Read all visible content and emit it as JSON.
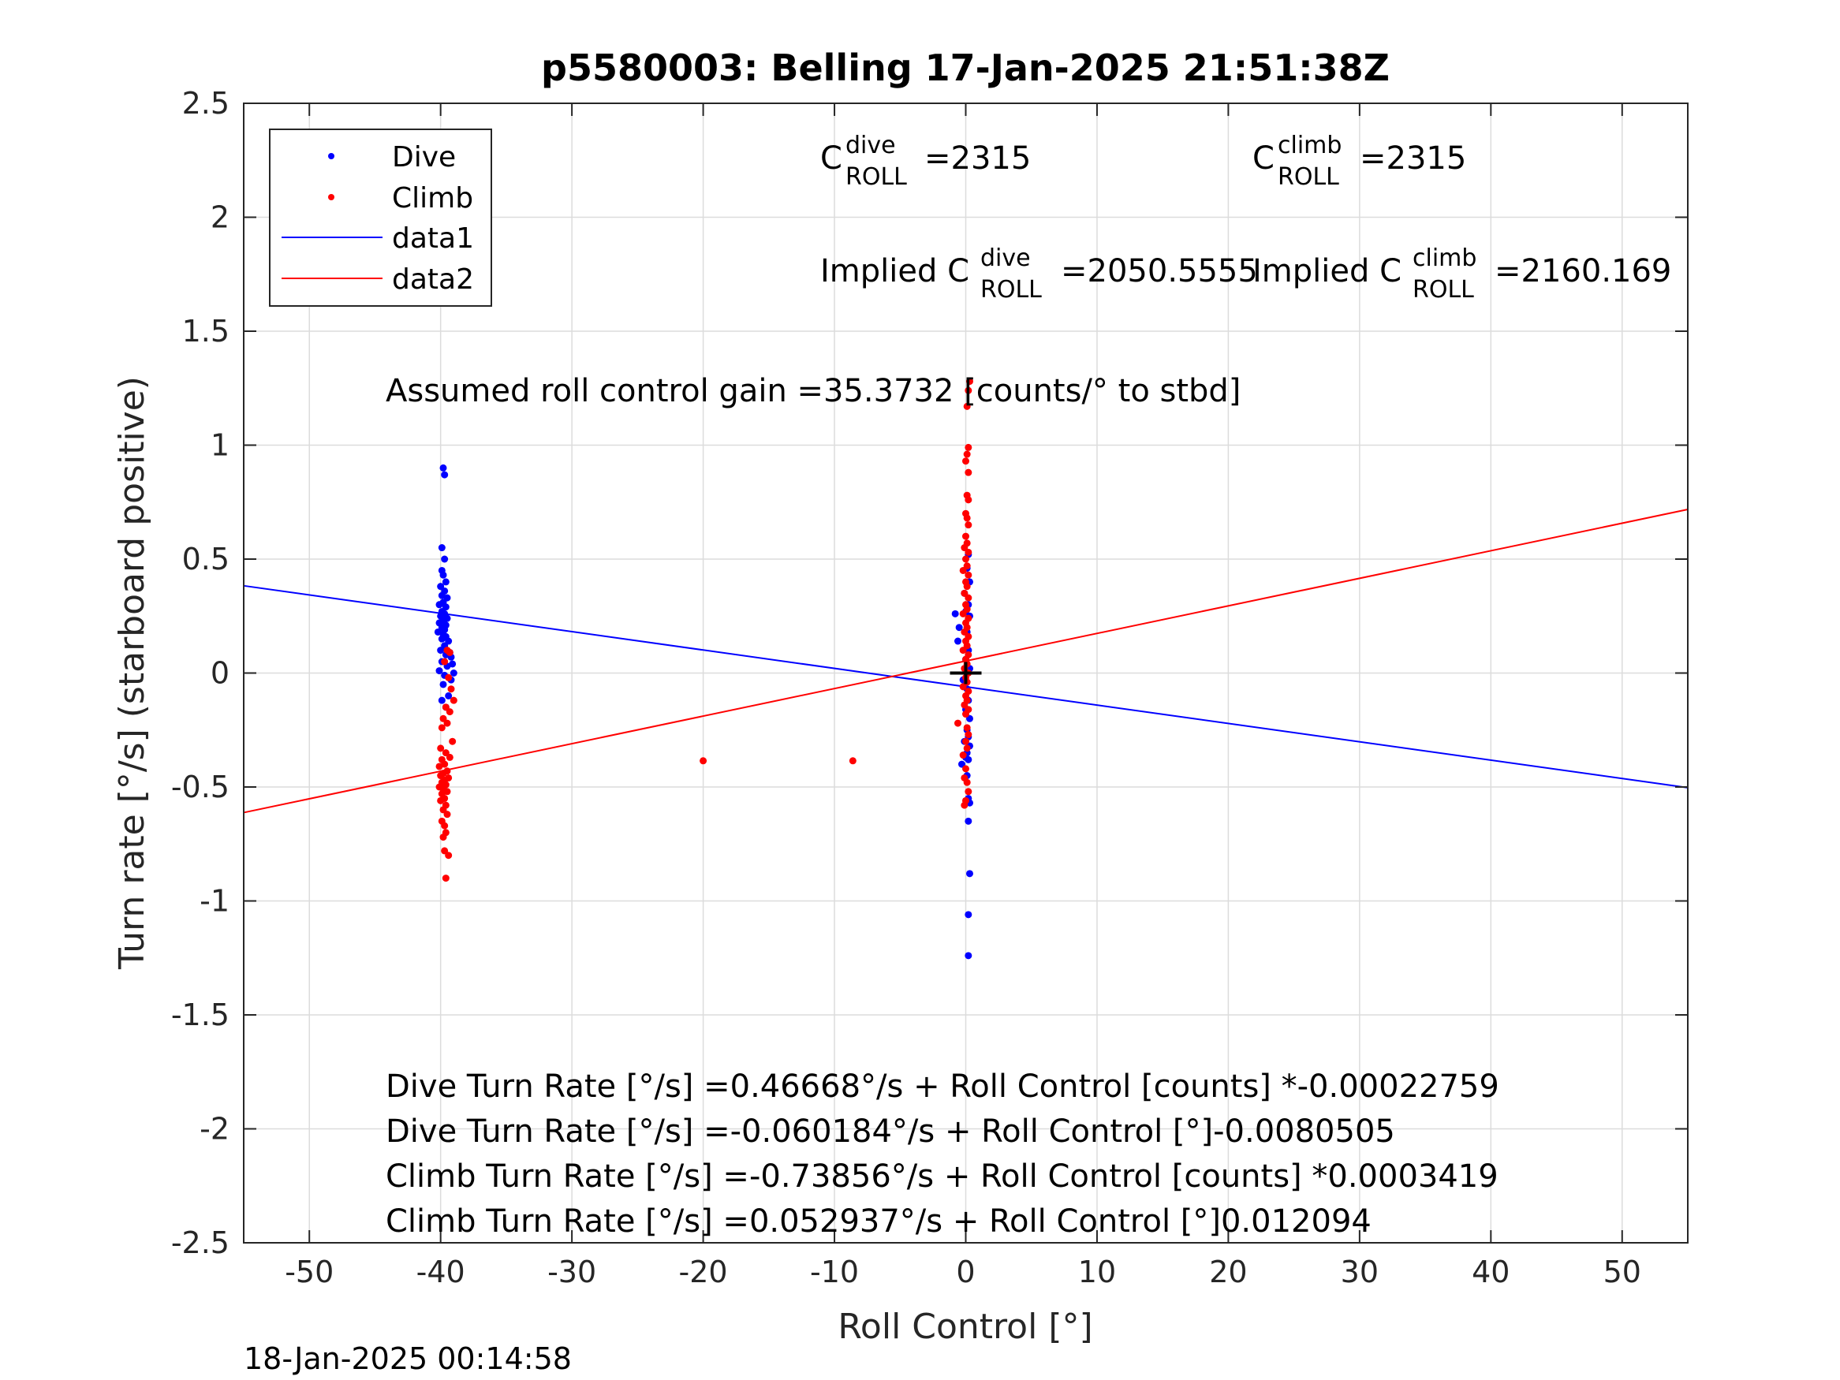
{
  "chart_data": {
    "type": "scatter",
    "title": "p5580003: Belling 17-Jan-2025 21:51:38Z",
    "xlabel": "Roll Control [°]",
    "ylabel": "Turn rate [°/s] (starboard positive)",
    "xlim": [
      -55,
      55
    ],
    "ylim": [
      -2.5,
      2.5
    ],
    "xticks": [
      -50,
      -40,
      -30,
      -20,
      -10,
      0,
      10,
      20,
      30,
      40,
      50
    ],
    "yticks": [
      -2.5,
      -2,
      -1.5,
      -1,
      -0.5,
      0,
      0.5,
      1,
      1.5,
      2,
      2.5
    ],
    "xtick_labels": [
      "-50",
      "-40",
      "-30",
      "-20",
      "-10",
      "0",
      "10",
      "20",
      "30",
      "40",
      "50"
    ],
    "ytick_labels": [
      "-2.5",
      "-2",
      "-1.5",
      "-1",
      "-0.5",
      "0",
      "0.5",
      "1",
      "1.5",
      "2",
      "2.5"
    ],
    "grid": true,
    "legend_position": "top-left",
    "legend": [
      {
        "label": "Dive",
        "kind": "marker",
        "color": "#0000ff"
      },
      {
        "label": "Climb",
        "kind": "marker",
        "color": "#ff0000"
      },
      {
        "label": "data1",
        "kind": "line",
        "color": "#0000ff"
      },
      {
        "label": "data2",
        "kind": "line",
        "color": "#ff0000"
      }
    ],
    "series": [
      {
        "name": "Dive",
        "color": "#0000ff",
        "points": [
          [
            -39.8,
            0.9
          ],
          [
            -39.7,
            0.87
          ],
          [
            -39.9,
            0.55
          ],
          [
            -39.7,
            0.5
          ],
          [
            -39.9,
            0.45
          ],
          [
            -39.8,
            0.43
          ],
          [
            -39.6,
            0.4
          ],
          [
            -40.0,
            0.38
          ],
          [
            -39.7,
            0.36
          ],
          [
            -39.9,
            0.34
          ],
          [
            -39.5,
            0.33
          ],
          [
            -39.8,
            0.31
          ],
          [
            -40.1,
            0.3
          ],
          [
            -39.6,
            0.29
          ],
          [
            -39.9,
            0.27
          ],
          [
            -39.7,
            0.26
          ],
          [
            -40.0,
            0.25
          ],
          [
            -39.5,
            0.24
          ],
          [
            -39.8,
            0.23
          ],
          [
            -40.1,
            0.22
          ],
          [
            -39.6,
            0.21
          ],
          [
            -39.9,
            0.2
          ],
          [
            -39.7,
            0.19
          ],
          [
            -40.2,
            0.18
          ],
          [
            -39.8,
            0.17
          ],
          [
            -39.6,
            0.16
          ],
          [
            -39.9,
            0.15
          ],
          [
            -39.4,
            0.14
          ],
          [
            -39.7,
            0.12
          ],
          [
            -40.0,
            0.1
          ],
          [
            -39.3,
            0.09
          ],
          [
            -39.6,
            0.08
          ],
          [
            -39.2,
            0.07
          ],
          [
            -39.9,
            0.05
          ],
          [
            -39.1,
            0.04
          ],
          [
            -39.5,
            0.03
          ],
          [
            -40.1,
            0.01
          ],
          [
            -39.0,
            0.0
          ],
          [
            -39.7,
            -0.01
          ],
          [
            -39.2,
            -0.03
          ],
          [
            -39.8,
            -0.05
          ],
          [
            -39.4,
            -0.1
          ],
          [
            -39.9,
            -0.12
          ],
          [
            -39.6,
            -0.15
          ],
          [
            0.2,
            0.52
          ],
          [
            0.1,
            0.46
          ],
          [
            0.3,
            0.4
          ],
          [
            -0.1,
            0.35
          ],
          [
            0.2,
            0.3
          ],
          [
            0.0,
            0.27
          ],
          [
            -0.8,
            0.26
          ],
          [
            0.3,
            0.25
          ],
          [
            -0.5,
            0.2
          ],
          [
            0.1,
            0.18
          ],
          [
            -0.6,
            0.14
          ],
          [
            0.2,
            0.1
          ],
          [
            0.0,
            0.06
          ],
          [
            0.3,
            0.02
          ],
          [
            -0.2,
            -0.03
          ],
          [
            0.1,
            -0.07
          ],
          [
            0.2,
            -0.12
          ],
          [
            0.0,
            -0.16
          ],
          [
            0.3,
            -0.2
          ],
          [
            0.1,
            -0.25
          ],
          [
            0.2,
            -0.28
          ],
          [
            -0.1,
            -0.3
          ],
          [
            0.3,
            -0.32
          ],
          [
            0.1,
            -0.35
          ],
          [
            0.0,
            -0.37
          ],
          [
            0.2,
            -0.38
          ],
          [
            -0.3,
            -0.4
          ],
          [
            0.1,
            -0.45
          ],
          [
            0.2,
            -0.55
          ],
          [
            0.3,
            -0.57
          ],
          [
            0.2,
            -0.65
          ],
          [
            0.3,
            -0.88
          ],
          [
            0.2,
            -1.06
          ],
          [
            0.2,
            -1.24
          ]
        ]
      },
      {
        "name": "Climb",
        "color": "#ff0000",
        "points": [
          [
            -39.5,
            0.1
          ],
          [
            -39.3,
            0.09
          ],
          [
            -39.7,
            0.05
          ],
          [
            -39.4,
            -0.02
          ],
          [
            -39.2,
            -0.07
          ],
          [
            -39.0,
            -0.12
          ],
          [
            -39.6,
            -0.15
          ],
          [
            -39.3,
            -0.17
          ],
          [
            -39.8,
            -0.2
          ],
          [
            -39.5,
            -0.22
          ],
          [
            -39.9,
            -0.24
          ],
          [
            -39.1,
            -0.3
          ],
          [
            -40.0,
            -0.33
          ],
          [
            -39.6,
            -0.35
          ],
          [
            -39.3,
            -0.37
          ],
          [
            -39.9,
            -0.38
          ],
          [
            -39.7,
            -0.4
          ],
          [
            -40.1,
            -0.41
          ],
          [
            -39.5,
            -0.43
          ],
          [
            -39.8,
            -0.44
          ],
          [
            -40.0,
            -0.45
          ],
          [
            -39.4,
            -0.46
          ],
          [
            -39.7,
            -0.47
          ],
          [
            -39.9,
            -0.48
          ],
          [
            -39.6,
            -0.49
          ],
          [
            -40.1,
            -0.5
          ],
          [
            -39.8,
            -0.51
          ],
          [
            -39.5,
            -0.52
          ],
          [
            -39.9,
            -0.53
          ],
          [
            -39.7,
            -0.55
          ],
          [
            -40.0,
            -0.56
          ],
          [
            -39.6,
            -0.58
          ],
          [
            -39.8,
            -0.6
          ],
          [
            -39.5,
            -0.62
          ],
          [
            -39.9,
            -0.65
          ],
          [
            -39.7,
            -0.67
          ],
          [
            -39.6,
            -0.7
          ],
          [
            -39.8,
            -0.72
          ],
          [
            -39.7,
            -0.78
          ],
          [
            -39.4,
            -0.8
          ],
          [
            -39.6,
            -0.9
          ],
          [
            -20.0,
            -0.385
          ],
          [
            -8.6,
            -0.385
          ],
          [
            0.3,
            1.28
          ],
          [
            0.2,
            1.24
          ],
          [
            0.1,
            1.17
          ],
          [
            0.2,
            0.99
          ],
          [
            0.1,
            0.96
          ],
          [
            0.0,
            0.93
          ],
          [
            0.2,
            0.88
          ],
          [
            0.1,
            0.78
          ],
          [
            0.2,
            0.76
          ],
          [
            0.0,
            0.7
          ],
          [
            0.1,
            0.68
          ],
          [
            0.2,
            0.65
          ],
          [
            0.0,
            0.6
          ],
          [
            0.1,
            0.57
          ],
          [
            -0.1,
            0.55
          ],
          [
            0.2,
            0.53
          ],
          [
            0.0,
            0.5
          ],
          [
            0.1,
            0.47
          ],
          [
            -0.2,
            0.45
          ],
          [
            0.2,
            0.43
          ],
          [
            0.0,
            0.4
          ],
          [
            0.1,
            0.38
          ],
          [
            -0.1,
            0.35
          ],
          [
            0.2,
            0.33
          ],
          [
            0.0,
            0.3
          ],
          [
            0.1,
            0.28
          ],
          [
            -0.2,
            0.26
          ],
          [
            0.2,
            0.24
          ],
          [
            0.0,
            0.22
          ],
          [
            0.1,
            0.2
          ],
          [
            -0.1,
            0.18
          ],
          [
            0.2,
            0.16
          ],
          [
            0.0,
            0.14
          ],
          [
            0.1,
            0.12
          ],
          [
            -0.2,
            0.1
          ],
          [
            0.2,
            0.08
          ],
          [
            0.0,
            0.06
          ],
          [
            0.1,
            0.04
          ],
          [
            -0.1,
            0.02
          ],
          [
            0.2,
            0.0
          ],
          [
            0.0,
            -0.02
          ],
          [
            0.1,
            -0.04
          ],
          [
            -0.2,
            -0.06
          ],
          [
            0.2,
            -0.08
          ],
          [
            0.0,
            -0.1
          ],
          [
            0.1,
            -0.12
          ],
          [
            -0.1,
            -0.14
          ],
          [
            0.2,
            -0.16
          ],
          [
            0.0,
            -0.18
          ],
          [
            -0.6,
            -0.22
          ],
          [
            0.1,
            -0.24
          ],
          [
            0.2,
            -0.27
          ],
          [
            0.0,
            -0.3
          ],
          [
            0.1,
            -0.33
          ],
          [
            -0.2,
            -0.36
          ],
          [
            0.0,
            -0.42
          ],
          [
            -0.1,
            -0.46
          ],
          [
            0.1,
            -0.48
          ],
          [
            0.2,
            -0.52
          ],
          [
            0.0,
            -0.56
          ],
          [
            -0.1,
            -0.58
          ]
        ]
      }
    ],
    "lines": [
      {
        "name": "data1",
        "color": "#0000ff",
        "x": [
          -55,
          55
        ],
        "y": [
          0.383,
          -0.503
        ]
      },
      {
        "name": "data2",
        "color": "#ff0000",
        "x": [
          -55,
          55
        ],
        "y": [
          -0.6122,
          0.718
        ]
      }
    ],
    "marker": {
      "type": "plus",
      "x": 0,
      "y": 0,
      "color": "#000000"
    },
    "annotations": {
      "c_dive_base": "C",
      "c_dive_sup": "dive",
      "c_dive_sub": "ROLL",
      "c_dive_value": "=2315",
      "c_climb_base": "C",
      "c_climb_sup": "climb",
      "c_climb_sub": "ROLL",
      "c_climb_value": "=2315",
      "implied_dive_prefix": "Implied C",
      "implied_dive_sup": "dive",
      "implied_dive_sub": "ROLL",
      "implied_dive_value": "=2050.5555",
      "implied_climb_prefix": "Implied C",
      "implied_climb_sup": "climb",
      "implied_climb_sub": "ROLL",
      "implied_climb_value": "=2160.169",
      "gain": "Assumed roll control gain =35.3732 [counts/° to stbd]",
      "eq1": "Dive Turn Rate [°/s] =0.46668°/s + Roll Control [counts] *-0.00022759",
      "eq2": "Dive Turn Rate [°/s] =-0.060184°/s + Roll Control [°]-0.0080505",
      "eq3": "Climb Turn Rate [°/s] =-0.73856°/s + Roll Control [counts] *0.0003419",
      "eq4": "Climb Turn Rate [°/s] =0.052937°/s + Roll Control [°]0.012094"
    },
    "footer": "18-Jan-2025 00:14:58"
  }
}
